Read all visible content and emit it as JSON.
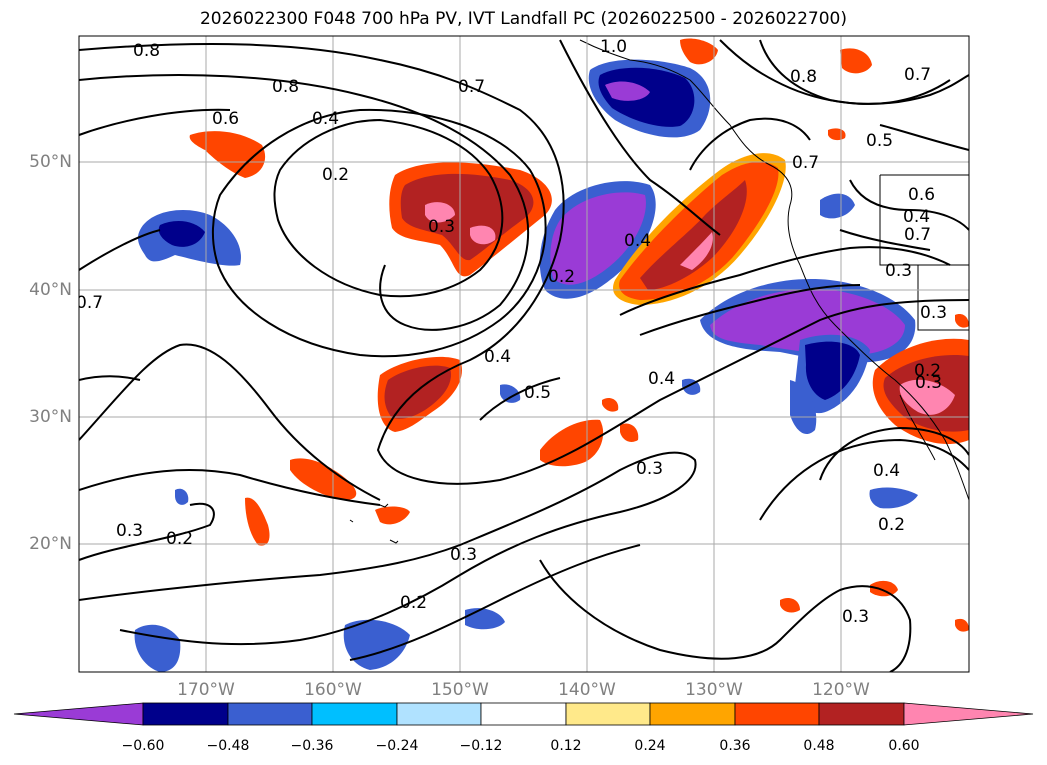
{
  "title": "2026022300 F048 700 hPa PV, IVT Landfall PC (2026022500 - 2026022700)",
  "lat_labels": [
    "50°N",
    "40°N",
    "30°N",
    "20°N"
  ],
  "lon_labels": [
    "170°W",
    "160°W",
    "150°W",
    "140°W",
    "130°W",
    "120°W"
  ],
  "colorbar": {
    "ticks": [
      "−0.60",
      "−0.48",
      "−0.36",
      "−0.24",
      "−0.12",
      "0.12",
      "0.24",
      "0.36",
      "0.48",
      "0.60"
    ],
    "colors": [
      "#9a3bd6",
      "#00008b",
      "#3a5fd0",
      "#00bfff",
      "#b0e2ff",
      "#ffffff",
      "#ffe98a",
      "#ffa500",
      "#ff4500",
      "#b22222",
      "#ff85b0"
    ]
  },
  "contour_labels": [
    "0.8",
    "0.8",
    "1.0",
    "0.7",
    "0.6",
    "0.4",
    "0.2",
    "0.3",
    "0.2",
    "0.4",
    "0.7",
    "0.5",
    "0.7",
    "0.8",
    "0.7",
    "0.6",
    "0.4",
    "0.3",
    "0.3",
    "0.4",
    "0.5",
    "0.4",
    "0.3",
    "0.3",
    "0.2",
    "0.2",
    "0.3",
    "0.3",
    "0.4",
    "0.2",
    "0.3",
    "0.7",
    "0.2"
  ]
}
